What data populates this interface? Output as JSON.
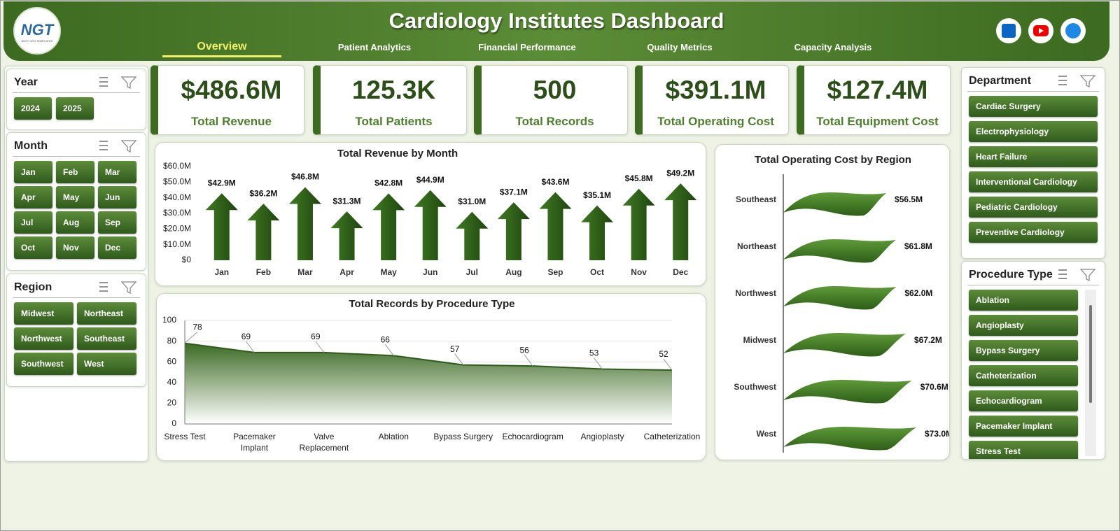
{
  "header": {
    "title": "Cardiology Institutes Dashboard",
    "logo": "NGT",
    "logo_subtitle": "NEXT GEN TEMPLATES",
    "tabs": [
      "Overview",
      "Patient Analytics",
      "Financial Performance",
      "Quality Metrics",
      "Capacity Analysis"
    ]
  },
  "filters": {
    "year": {
      "title": "Year",
      "items": [
        "2024",
        "2025"
      ]
    },
    "month": {
      "title": "Month",
      "items": [
        "Jan",
        "Feb",
        "Mar",
        "Apr",
        "May",
        "Jun",
        "Jul",
        "Aug",
        "Sep",
        "Oct",
        "Nov",
        "Dec"
      ]
    },
    "region": {
      "title": "Region",
      "items": [
        "Midwest",
        "Northeast",
        "Northwest",
        "Southeast",
        "Southwest",
        "West"
      ]
    },
    "department": {
      "title": "Department",
      "items": [
        "Cardiac Surgery",
        "Electrophysiology",
        "Heart Failure",
        "Interventional Cardiology",
        "Pediatric Cardiology",
        "Preventive Cardiology"
      ]
    },
    "procedure_type": {
      "title": "Procedure Type",
      "items": [
        "Ablation",
        "Angioplasty",
        "Bypass Surgery",
        "Catheterization",
        "Echocardiogram",
        "Pacemaker Implant",
        "Stress Test"
      ]
    }
  },
  "kpis": [
    {
      "value": "$486.6M",
      "label": "Total Revenue"
    },
    {
      "value": "125.3K",
      "label": "Total Patients"
    },
    {
      "value": "500",
      "label": "Total Records"
    },
    {
      "value": "$391.1M",
      "label": "Total Operating Cost"
    },
    {
      "value": "$127.4M",
      "label": "Total Equipment Cost"
    }
  ],
  "chart_data": [
    {
      "type": "bar",
      "title": "Total Revenue  by Month",
      "categories": [
        "Jan",
        "Feb",
        "Mar",
        "Apr",
        "May",
        "Jun",
        "Jul",
        "Aug",
        "Sep",
        "Oct",
        "Nov",
        "Dec"
      ],
      "values": [
        42.9,
        36.2,
        46.8,
        31.3,
        42.8,
        44.9,
        31.0,
        37.1,
        43.6,
        35.1,
        45.8,
        49.2
      ],
      "value_labels": [
        "$42.9M",
        "$36.2M",
        "$46.8M",
        "$31.3M",
        "$42.8M",
        "$44.9M",
        "$31.0M",
        "$37.1M",
        "$43.6M",
        "$35.1M",
        "$45.8M",
        "$49.2M"
      ],
      "color": "#3f7a22",
      "ylim": [
        0,
        60
      ],
      "yticks": [
        {
          "value": 0,
          "label": "$0"
        },
        {
          "value": 10,
          "label": "$10.0M"
        },
        {
          "value": 20,
          "label": "$20.0M"
        },
        {
          "value": 30,
          "label": "$30.0M"
        },
        {
          "value": 40,
          "label": "$40.0M"
        },
        {
          "value": 50,
          "label": "$50.0M"
        },
        {
          "value": 60,
          "label": "$60.0M"
        }
      ]
    },
    {
      "type": "barh",
      "title": "Total Operating Cost by Region",
      "categories": [
        "Southeast",
        "Northeast",
        "Northwest",
        "Midwest",
        "Southwest",
        "West"
      ],
      "values": [
        56.5,
        61.8,
        62.0,
        67.2,
        70.6,
        73.0
      ],
      "value_labels": [
        "$56.5M",
        "$61.8M",
        "$62.0M",
        "$67.2M",
        "$70.6M",
        "$73.0M"
      ],
      "color": "#3f7a22"
    },
    {
      "type": "area",
      "title": "Total Records by Procedure Type",
      "categories": [
        "Stress Test",
        "Pacemaker Implant",
        "Valve Replacement",
        "Ablation",
        "Bypass Surgery",
        "Echocardiogram",
        "Angioplasty",
        "Catheterization"
      ],
      "values": [
        78,
        69,
        69,
        66,
        57,
        56,
        53,
        52
      ],
      "color": "#3b6a23",
      "ylim": [
        0,
        100
      ],
      "yticks": [
        0,
        20,
        40,
        60,
        80,
        100
      ],
      "grid": true
    }
  ]
}
